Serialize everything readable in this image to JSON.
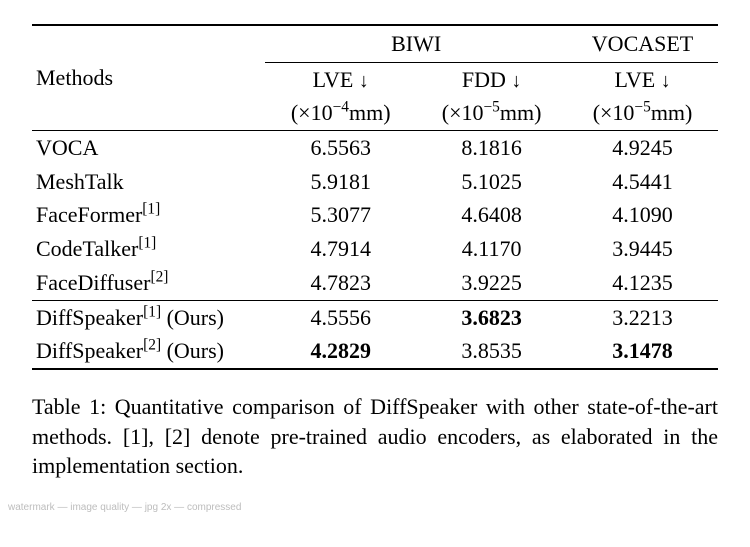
{
  "table": {
    "methods_header": "Methods",
    "group_headers": [
      "BIWI",
      "VOCASET"
    ],
    "metric_headers": [
      {
        "metric": "LVE",
        "arrow": "↓",
        "unit_prefix": "(×10",
        "unit_exp": "−4",
        "unit_suffix": "mm)"
      },
      {
        "metric": "FDD",
        "arrow": "↓",
        "unit_prefix": "(×10",
        "unit_exp": "−5",
        "unit_suffix": "mm)"
      },
      {
        "metric": "LVE",
        "arrow": "↓",
        "unit_prefix": "(×10",
        "unit_exp": "−5",
        "unit_suffix": "mm)"
      }
    ],
    "rows_top": [
      {
        "name": "VOCA",
        "ref": "",
        "v": [
          "6.5563",
          "8.1816",
          "4.9245"
        ],
        "bold": [
          false,
          false,
          false
        ]
      },
      {
        "name": "MeshTalk",
        "ref": "",
        "v": [
          "5.9181",
          "5.1025",
          "4.5441"
        ],
        "bold": [
          false,
          false,
          false
        ]
      },
      {
        "name": "FaceFormer",
        "ref": "[1]",
        "v": [
          "5.3077",
          "4.6408",
          "4.1090"
        ],
        "bold": [
          false,
          false,
          false
        ]
      },
      {
        "name": "CodeTalker",
        "ref": "[1]",
        "v": [
          "4.7914",
          "4.1170",
          "3.9445"
        ],
        "bold": [
          false,
          false,
          false
        ]
      },
      {
        "name": "FaceDiffuser",
        "ref": "[2]",
        "v": [
          "4.7823",
          "3.9225",
          "4.1235"
        ],
        "bold": [
          false,
          false,
          false
        ]
      }
    ],
    "rows_bot": [
      {
        "name": "DiffSpeaker",
        "ref": "[1]",
        "suffix": " (Ours)",
        "v": [
          "4.5556",
          "3.6823",
          "3.2213"
        ],
        "bold": [
          false,
          true,
          false
        ]
      },
      {
        "name": "DiffSpeaker",
        "ref": "[2]",
        "suffix": " (Ours)",
        "v": [
          "4.2829",
          "3.8535",
          "3.1478"
        ],
        "bold": [
          true,
          false,
          true
        ]
      }
    ]
  },
  "caption": {
    "label": "Table 1:",
    "text_a": " Quantitative comparison of DiffSpeaker with other state-of-the-art methods.  ",
    "ref1": "[1]",
    "sep": ", ",
    "ref2": "[2]",
    "text_b": " denote pre-trained audio encoders, as elaborated in the implementation section."
  },
  "watermark": "watermark — image quality — jpg 2x — compressed"
}
